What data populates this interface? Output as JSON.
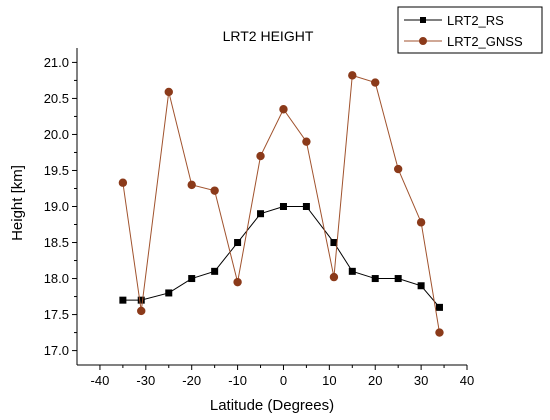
{
  "chart_data": {
    "type": "line",
    "title": "LRT2 HEIGHT",
    "xlabel": "Latitude (Degrees)",
    "ylabel": "Height [km]",
    "xlim": [
      -45,
      40
    ],
    "ylim": [
      16.8,
      21.2
    ],
    "xticks": [
      -40,
      -30,
      -20,
      -10,
      0,
      10,
      20,
      30,
      40
    ],
    "yticks": [
      17.0,
      17.5,
      18.0,
      18.5,
      19.0,
      19.5,
      20.0,
      20.5,
      21.0
    ],
    "xtick_labels": [
      "-40",
      "-30",
      "-20",
      "-10",
      "0",
      "10",
      "20",
      "30",
      "40"
    ],
    "ytick_labels": [
      "17.0",
      "17.5",
      "18.0",
      "18.5",
      "19.0",
      "19.5",
      "20.0",
      "20.5",
      "21.0"
    ],
    "legend_position": "top-right",
    "grid": false,
    "series": [
      {
        "name": "LRT2_RS",
        "color": "#000000",
        "marker": "square",
        "x": [
          -35,
          -31,
          -25,
          -20,
          -15,
          -10,
          -5,
          0,
          5,
          11,
          15,
          20,
          25,
          30,
          34
        ],
        "y": [
          17.7,
          17.7,
          17.8,
          18.0,
          18.1,
          18.5,
          18.9,
          19.0,
          19.0,
          18.5,
          18.1,
          18.0,
          18.0,
          17.9,
          17.6
        ]
      },
      {
        "name": "LRT2_GNSS",
        "color": "#a0522d",
        "marker": "circle",
        "x": [
          -35,
          -31,
          -25,
          -20,
          -15,
          -10,
          -5,
          0,
          5,
          11,
          15,
          20,
          25,
          30,
          34
        ],
        "y": [
          19.33,
          17.55,
          20.59,
          19.3,
          19.22,
          17.95,
          19.7,
          20.35,
          19.9,
          18.02,
          20.82,
          20.72,
          19.52,
          18.78,
          17.25
        ]
      }
    ]
  }
}
